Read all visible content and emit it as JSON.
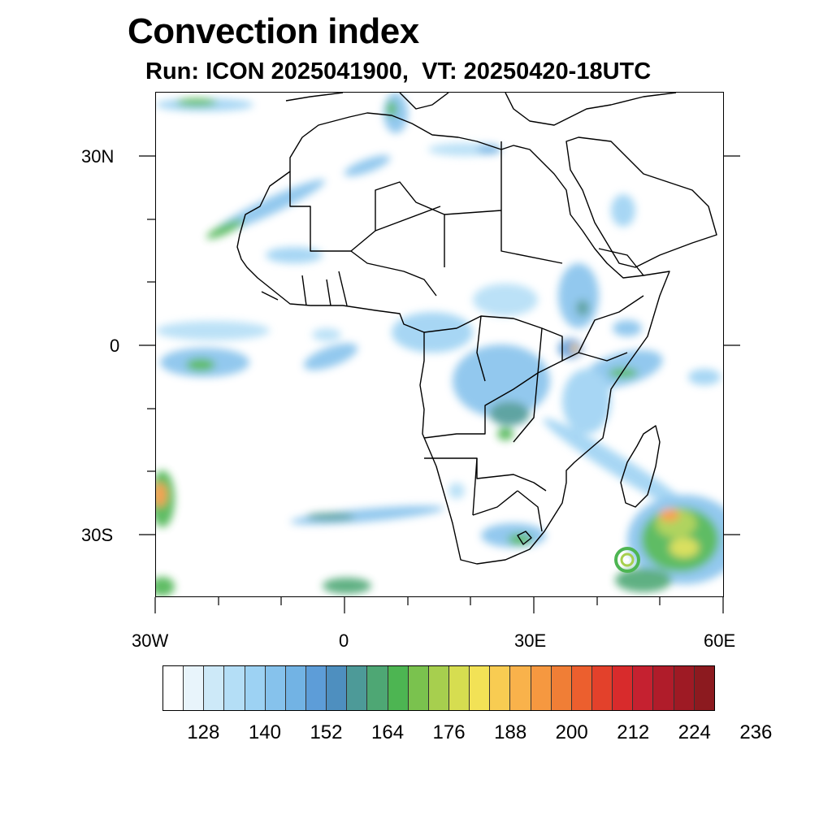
{
  "chart": {
    "title": "Convection index",
    "subtitle": "Run: ICON 2025041900,  VT: 20250420-18UTC"
  },
  "axes": {
    "lat_ticks": [
      "30N",
      "0",
      "30S"
    ],
    "lon_ticks": [
      "30W",
      "0",
      "30E",
      "60E"
    ]
  },
  "colorbar": {
    "colors": [
      "#ffffff",
      "#e8f4fb",
      "#cde9f8",
      "#b4def6",
      "#9dd2f3",
      "#86c2ec",
      "#72b3e4",
      "#5d9dd8",
      "#4e8fbf",
      "#4d9a98",
      "#4ea774",
      "#4db552",
      "#7ac24e",
      "#a7cf4e",
      "#d6dd50",
      "#f2e256",
      "#f8cc52",
      "#f9b24b",
      "#f69840",
      "#f07e36",
      "#ec5f2e",
      "#e3412b",
      "#d82b2c",
      "#c52130",
      "#b01c2a",
      "#9e1a24",
      "#8c1a1f"
    ],
    "labels": [
      "128",
      "140",
      "152",
      "164",
      "176",
      "188",
      "200",
      "212",
      "224",
      "236"
    ]
  }
}
